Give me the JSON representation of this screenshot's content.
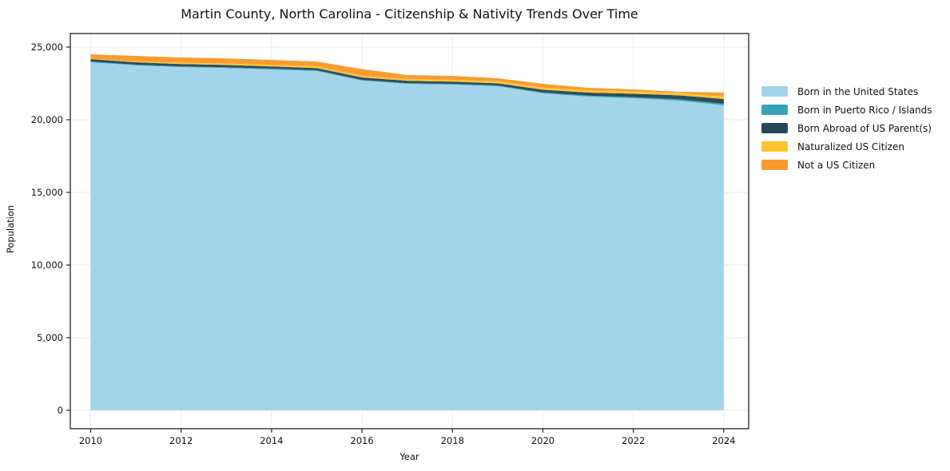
{
  "figure": {
    "title": "Martin County, North Carolina - Citizenship & Nativity Trends Over Time",
    "background": "#ffffff"
  },
  "axes": {
    "xlabel": "Year",
    "ylabel": "Population",
    "x_tick_labels": [
      "2010",
      "2012",
      "2014",
      "2016",
      "2018",
      "2020",
      "2022",
      "2024"
    ],
    "y_tick_labels": [
      "0",
      "5,000",
      "10,000",
      "15,000",
      "20,000",
      "25,000"
    ]
  },
  "legend": {
    "items": [
      {
        "label": "Born in the United States",
        "color": "#a1d3ea"
      },
      {
        "label": "Born in Puerto Rico / Islands",
        "color": "#35a2b5"
      },
      {
        "label": "Born Abroad of US Parent(s)",
        "color": "#25475a"
      },
      {
        "label": "Naturalized US Citizen",
        "color": "#fdc330"
      },
      {
        "label": "Not a US Citizen",
        "color": "#f7992b"
      }
    ]
  },
  "chart_data": {
    "type": "area",
    "stacked": true,
    "title": "Martin County, North Carolina - Citizenship & Nativity Trends Over Time",
    "xlabel": "Year",
    "ylabel": "Population",
    "x": [
      2010,
      2011,
      2012,
      2013,
      2014,
      2015,
      2016,
      2017,
      2018,
      2019,
      2020,
      2021,
      2022,
      2023,
      2024
    ],
    "series": [
      {
        "name": "Born in the United States",
        "color": "#a1d3ea",
        "values": [
          23960,
          23740,
          23620,
          23560,
          23460,
          23350,
          22690,
          22470,
          22420,
          22310,
          21820,
          21590,
          21480,
          21320,
          20990
        ]
      },
      {
        "name": "Born in Puerto Rico / Islands",
        "color": "#35a2b5",
        "values": [
          45,
          50,
          55,
          55,
          55,
          55,
          55,
          50,
          50,
          50,
          60,
          70,
          80,
          95,
          110
        ]
      },
      {
        "name": "Born Abroad of US Parent(s)",
        "color": "#25475a",
        "values": [
          170,
          165,
          160,
          155,
          150,
          150,
          165,
          160,
          155,
          150,
          185,
          210,
          230,
          270,
          330
        ]
      },
      {
        "name": "Naturalized US Citizen",
        "color": "#fdc330",
        "values": [
          40,
          60,
          90,
          105,
          115,
          120,
          110,
          120,
          130,
          140,
          150,
          155,
          160,
          160,
          165
        ]
      },
      {
        "name": "Not a US Citizen",
        "color": "#f7992b",
        "values": [
          290,
          380,
          360,
          350,
          340,
          330,
          470,
          280,
          265,
          210,
          255,
          175,
          135,
          80,
          275
        ]
      }
    ],
    "totals": [
      24505,
      24395,
      24285,
      24225,
      24120,
      24005,
      23490,
      23080,
      23020,
      22860,
      22470,
      22200,
      22085,
      21925,
      21870
    ],
    "xlim": [
      2009.55,
      2024.55
    ],
    "ylim": [
      -1264,
      25934
    ],
    "xticks": [
      2010,
      2012,
      2014,
      2016,
      2018,
      2020,
      2022,
      2024
    ],
    "yticks": [
      0,
      5000,
      10000,
      15000,
      20000,
      25000
    ],
    "grid": true,
    "grid_color": "#ebebeb",
    "spine_color": "#222222",
    "legend_position": "right"
  }
}
